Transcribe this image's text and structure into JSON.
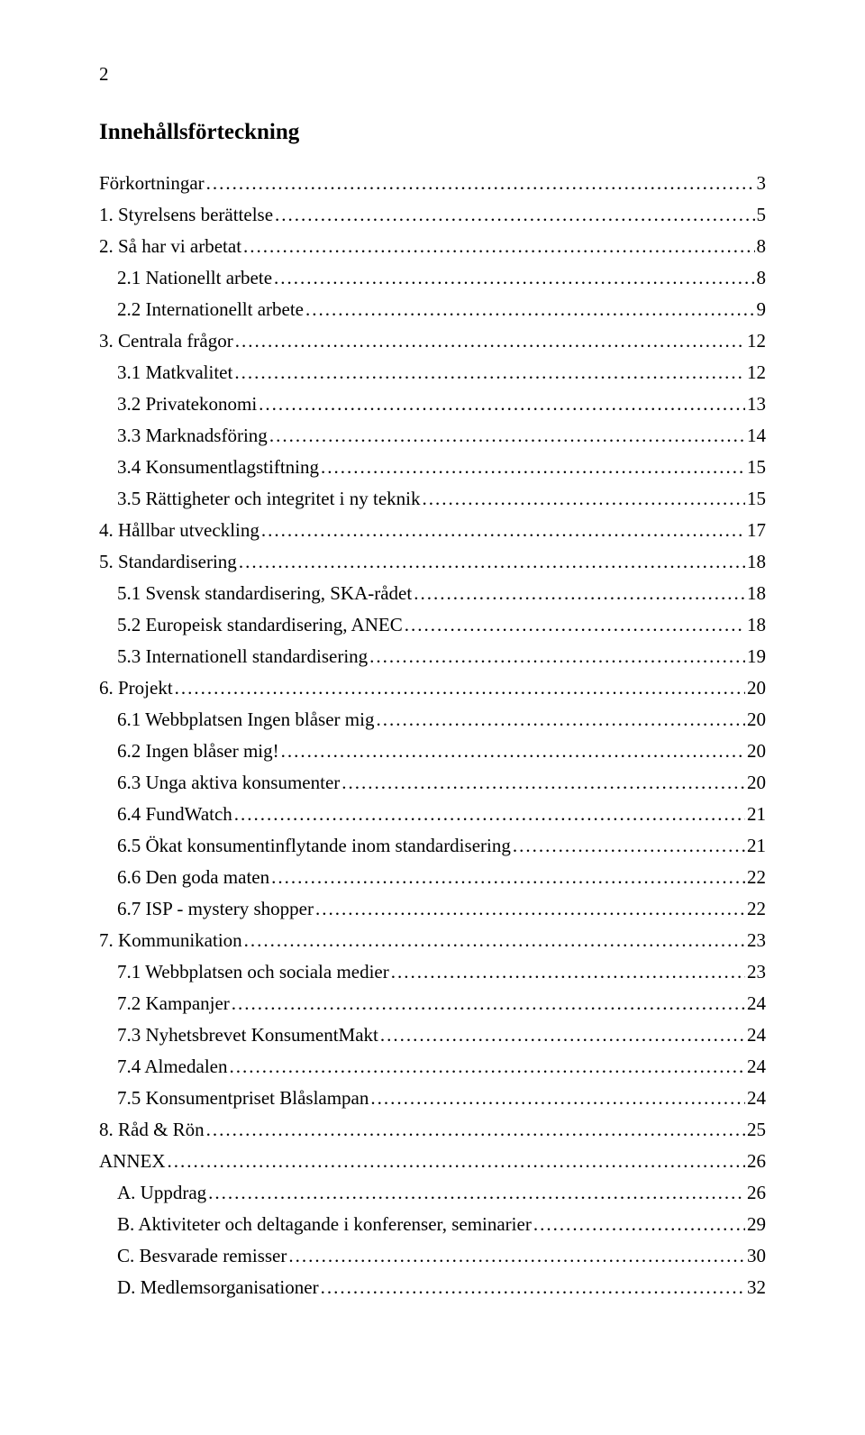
{
  "page_number": "2",
  "title": "Innehållsförteckning",
  "toc": [
    {
      "label": "Förkortningar",
      "page": "3",
      "indent": 0
    },
    {
      "label": "1. Styrelsens berättelse",
      "page": "5",
      "indent": 0
    },
    {
      "label": "2. Så har vi arbetat",
      "page": "8",
      "indent": 0
    },
    {
      "label": "2.1 Nationellt arbete",
      "page": "8",
      "indent": 1
    },
    {
      "label": "2.2 Internationellt arbete",
      "page": "9",
      "indent": 1
    },
    {
      "label": "3. Centrala frågor",
      "page": "12",
      "indent": 0
    },
    {
      "label": "3.1 Matkvalitet",
      "page": "12",
      "indent": 1
    },
    {
      "label": "3.2 Privatekonomi",
      "page": "13",
      "indent": 1
    },
    {
      "label": "3.3 Marknadsföring",
      "page": "14",
      "indent": 1
    },
    {
      "label": "3.4 Konsumentlagstiftning",
      "page": "15",
      "indent": 1
    },
    {
      "label": "3.5 Rättigheter och integritet i ny teknik",
      "page": "15",
      "indent": 1
    },
    {
      "label": "4. Hållbar utveckling",
      "page": "17",
      "indent": 0
    },
    {
      "label": "5. Standardisering",
      "page": "18",
      "indent": 0
    },
    {
      "label": "5.1 Svensk standardisering, SKA-rådet",
      "page": "18",
      "indent": 1
    },
    {
      "label": "5.2 Europeisk standardisering, ANEC",
      "page": "18",
      "indent": 1
    },
    {
      "label": "5.3 Internationell standardisering",
      "page": "19",
      "indent": 1
    },
    {
      "label": "6. Projekt",
      "page": "20",
      "indent": 0
    },
    {
      "label": "6.1 Webbplatsen Ingen blåser mig",
      "page": "20",
      "indent": 1
    },
    {
      "label": "6.2 Ingen blåser mig!",
      "page": "20",
      "indent": 1
    },
    {
      "label": "6.3 Unga aktiva konsumenter",
      "page": "20",
      "indent": 1
    },
    {
      "label": "6.4 FundWatch",
      "page": "21",
      "indent": 1
    },
    {
      "label": "6.5 Ökat konsumentinflytande inom standardisering",
      "page": "21",
      "indent": 1
    },
    {
      "label": "6.6 Den goda maten",
      "page": "22",
      "indent": 1
    },
    {
      "label": "6.7 ISP - mystery shopper",
      "page": "22",
      "indent": 1
    },
    {
      "label": "7. Kommunikation",
      "page": "23",
      "indent": 0
    },
    {
      "label": "7.1 Webbplatsen och sociala medier",
      "page": "23",
      "indent": 1
    },
    {
      "label": "7.2 Kampanjer",
      "page": "24",
      "indent": 1
    },
    {
      "label": "7.3 Nyhetsbrevet KonsumentMakt",
      "page": "24",
      "indent": 1
    },
    {
      "label": "7.4 Almedalen",
      "page": "24",
      "indent": 1
    },
    {
      "label": "7.5 Konsumentpriset Blåslampan",
      "page": "24",
      "indent": 1
    },
    {
      "label": "8. Råd & Rön",
      "page": "25",
      "indent": 0
    },
    {
      "label": "ANNEX",
      "page": "26",
      "indent": 0
    },
    {
      "label": "A. Uppdrag",
      "page": "26",
      "indent": 1
    },
    {
      "label": "B. Aktiviteter och deltagande i konferenser, seminarier",
      "page": "29",
      "indent": 1
    },
    {
      "label": "C. Besvarade remisser",
      "page": "30",
      "indent": 1
    },
    {
      "label": "D. Medlemsorganisationer",
      "page": "32",
      "indent": 1
    }
  ]
}
